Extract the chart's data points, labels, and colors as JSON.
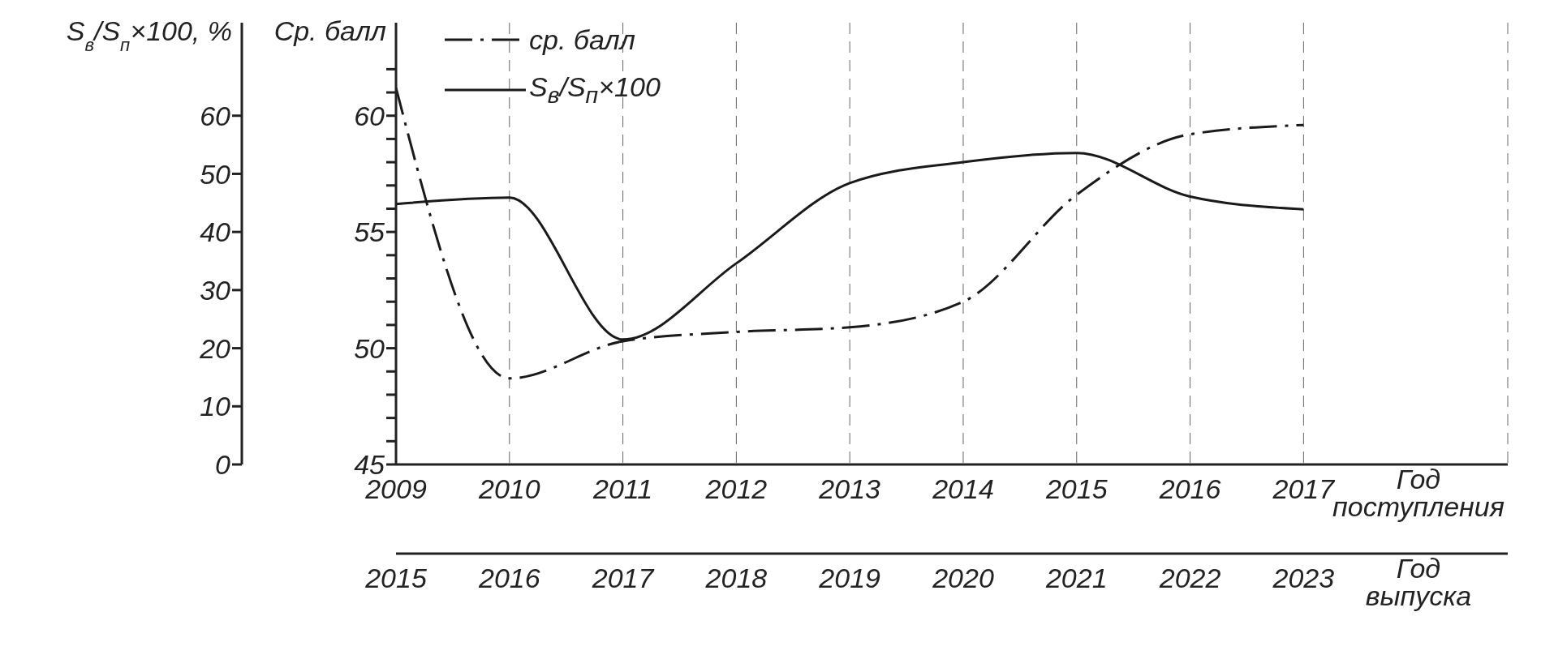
{
  "chart_data": {
    "type": "line",
    "ylabel": "Ср. балл",
    "y2label": "S$_{в}$/S$_{п}$×100, %",
    "xlabel": "Год поступления",
    "x2label": "Год выпуска",
    "x": [
      2009,
      2010,
      2011,
      2012,
      2013,
      2014,
      2015,
      2016,
      2017
    ],
    "xlim": [
      2009,
      2018.8
    ],
    "xticks": [
      2009,
      2010,
      2011,
      2012,
      2013,
      2014,
      2015,
      2016,
      2017
    ],
    "x2lim": [
      2015,
      2024.8
    ],
    "x2ticks": [
      2015,
      2016,
      2017,
      2018,
      2019,
      2020,
      2021,
      2022,
      2023
    ],
    "ylim": [
      45,
      64
    ],
    "yticks": [
      45,
      {
        "value": 46,
        "label": null
      },
      {
        "value": 47,
        "label": null
      },
      {
        "value": 48,
        "label": null
      },
      {
        "value": 49,
        "label": null
      },
      50,
      {
        "value": 51,
        "label": null
      },
      {
        "value": 52,
        "label": null
      },
      {
        "value": 53,
        "label": null
      },
      {
        "value": 54,
        "label": null
      },
      55,
      {
        "value": 56,
        "label": null
      },
      {
        "value": 57,
        "label": null
      },
      {
        "value": 58,
        "label": null
      },
      {
        "value": 59,
        "label": null
      },
      60,
      {
        "value": 61,
        "label": null
      },
      {
        "value": 62,
        "label": null
      }
    ],
    "y2lim": [
      0,
      76
    ],
    "y2ticks": [
      0,
      10,
      20,
      30,
      40,
      50,
      60
    ],
    "series": [
      {
        "name": "ср. балл",
        "color": "#1a1a1a",
        "line_style": "dashed",
        "values": [
          61.2,
          48.7,
          50.3,
          50.7,
          50.9,
          52.0,
          56.6,
          59.2,
          59.6
        ]
      },
      {
        "name": "S$_{в}$/S$_{п}$×100",
        "color": "#1a1a1a",
        "line_style": "solid",
        "axis": "y2",
        "values": [
          44.8,
          45.9,
          21.5,
          34.6,
          48.4,
          52.0,
          53.6,
          46.1,
          43.9
        ]
      }
    ],
    "grid": "x",
    "legend": "top left"
  }
}
